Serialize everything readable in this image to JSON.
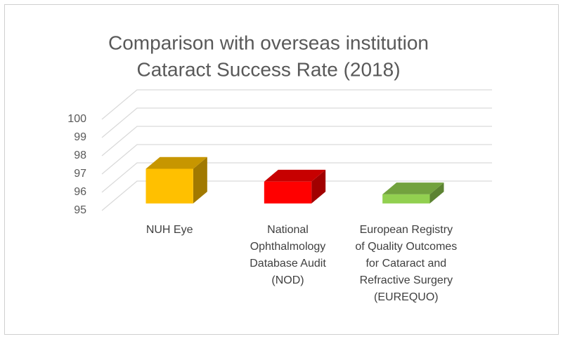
{
  "chart_data": {
    "type": "bar3d",
    "title": "Comparison with overseas institution",
    "subtitle": "Cataract Success Rate (2018)",
    "categories": [
      "NUH Eye",
      "National Ophthalmology Database Audit (NOD)",
      "European Registry of Quality Outcomes for Cataract and Refractive Surgery (EUREQUO)"
    ],
    "values": [
      96.9,
      96.2,
      95.5
    ],
    "colors": [
      "#ffc000",
      "#ff0000",
      "#92d050"
    ],
    "ylim": [
      95,
      100
    ],
    "yticks": [
      95,
      96,
      97,
      98,
      99,
      100
    ],
    "grid": true
  }
}
